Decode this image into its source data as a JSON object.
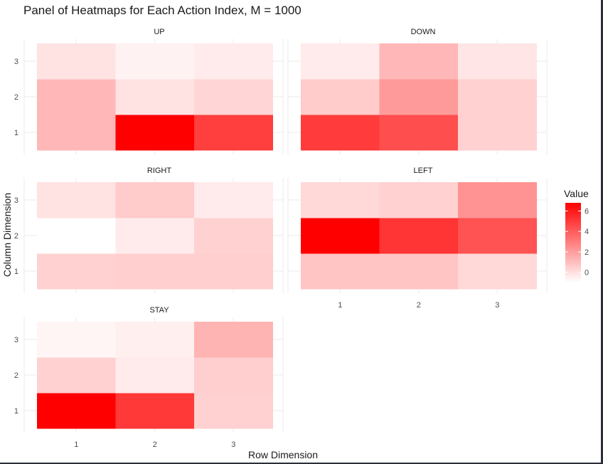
{
  "chart_data": {
    "type": "heatmap",
    "title": "Panel of Heatmaps for Each Action Index, M = 1000",
    "xlabel": "Row Dimension",
    "ylabel": "Column Dimension",
    "x_categories": [
      "1",
      "2",
      "3"
    ],
    "y_categories": [
      "1",
      "2",
      "3"
    ],
    "legend": {
      "title": "Value",
      "ticks": [
        "0",
        "2",
        "4",
        "6"
      ],
      "min": -1,
      "max": 6.8,
      "position": "right"
    },
    "color_low": "#ffffff",
    "color_high": "#ff0000",
    "panels": [
      {
        "name": "UP",
        "cells": [
          [
            1.2,
            6.8,
            4.9
          ],
          [
            1.2,
            -0.1,
            0.3
          ],
          [
            -0.1,
            -0.6,
            -0.4
          ]
        ]
      },
      {
        "name": "DOWN",
        "cells": [
          [
            5.0,
            4.4,
            0.4
          ],
          [
            0.6,
            2.1,
            0.4
          ],
          [
            -0.4,
            1.2,
            -0.2
          ]
        ]
      },
      {
        "name": "RIGHT",
        "cells": [
          [
            0.4,
            0.5,
            0.5
          ],
          [
            -1.0,
            -0.4,
            0.4
          ],
          [
            -0.1,
            0.6,
            -0.4
          ]
        ]
      },
      {
        "name": "LEFT",
        "cells": [
          [
            0.8,
            0.8,
            0.2
          ],
          [
            6.8,
            5.2,
            4.3
          ],
          [
            0.2,
            0.4,
            2.3
          ]
        ]
      },
      {
        "name": "STAY",
        "cells": [
          [
            6.8,
            5.1,
            0.4
          ],
          [
            0.4,
            -0.4,
            0.5
          ],
          [
            -0.7,
            -0.5,
            1.3
          ]
        ]
      }
    ]
  }
}
